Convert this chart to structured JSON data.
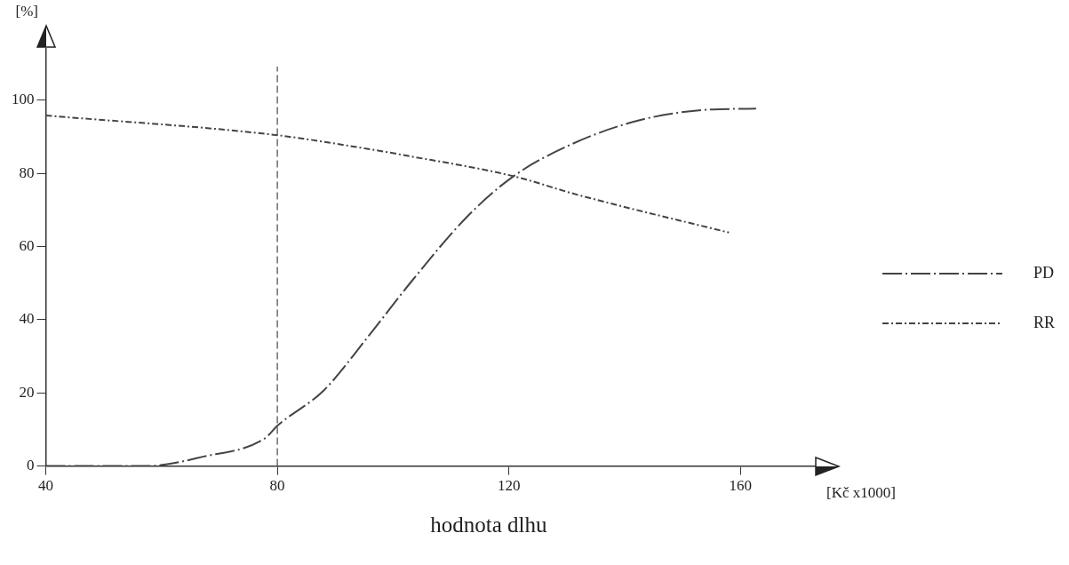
{
  "chart_data": {
    "type": "line",
    "xlabel": "hodnota dlhu",
    "ylabel": "[%]",
    "annotations": [
      "[Kč  x1000]"
    ],
    "xlim": [
      40,
      173
    ],
    "xticks": [
      40,
      80,
      120,
      160
    ],
    "ylim": [
      0,
      114
    ],
    "yticks": [
      0,
      20,
      40,
      60,
      80,
      100
    ],
    "grid": false,
    "legend": "right",
    "marker": "none",
    "ref_lines": [
      {
        "axis": "x",
        "value": 80,
        "color": "#555555",
        "line_style": "dashed"
      }
    ],
    "series": [
      {
        "name": "PD",
        "color": "#444444",
        "line_style": "dashed",
        "x": [
          40,
          57.5,
          67.3,
          77.8,
          80,
          88.1,
          95.5,
          103.3,
          112.7,
          120.8,
          130.9,
          142.3,
          152.8,
          162.7
        ],
        "values": [
          0,
          0,
          2.6,
          7.5,
          11,
          20.8,
          35,
          50.7,
          68,
          79.2,
          88,
          94.4,
          97.2,
          97.7
        ]
      },
      {
        "name": "RR",
        "color": "#444444",
        "line_style": "dotted",
        "x": [
          40,
          80,
          95.5,
          101.7,
          120.8,
          131.9,
          158
        ],
        "values": [
          95.8,
          90.4,
          86.7,
          85,
          79.2,
          74.1,
          63.8
        ]
      }
    ]
  }
}
